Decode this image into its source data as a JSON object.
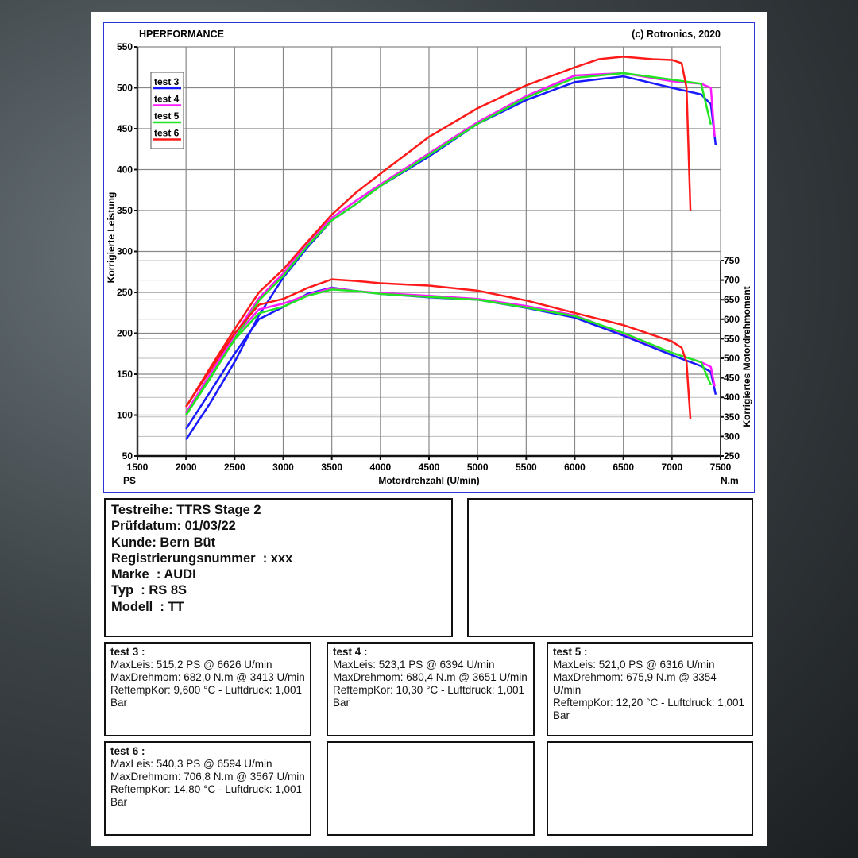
{
  "header": {
    "brand": "HPERFORMANCE",
    "copyright": "(c) Rotronics, 2020"
  },
  "chart_data": {
    "type": "line",
    "xlabel": "Motordrehzahl (U/min)",
    "ylabel_left": "Korrigierte Leistung",
    "ylabel_right": "Korrigiertes Motordrehmoment",
    "unit_left": "PS",
    "unit_right": "N.m",
    "xlim": [
      1500,
      7500
    ],
    "ylim_left": [
      50,
      550
    ],
    "ylim_right": [
      250,
      750
    ],
    "xticks": [
      1500,
      2000,
      2500,
      3000,
      3500,
      4000,
      4500,
      5000,
      5500,
      6000,
      6500,
      7000,
      7500
    ],
    "yticks_left": [
      50,
      100,
      150,
      200,
      250,
      300,
      350,
      400,
      450,
      500,
      550
    ],
    "yticks_right": [
      250,
      300,
      350,
      400,
      450,
      500,
      550,
      600,
      650,
      700,
      750
    ],
    "grid": true,
    "legend_placement": "top-left",
    "series": [
      {
        "name": "test 3",
        "color": "#1a1aff",
        "power": [
          [
            2000,
            70
          ],
          [
            2250,
            115
          ],
          [
            2500,
            165
          ],
          [
            2750,
            222
          ],
          [
            3000,
            268
          ],
          [
            3250,
            305
          ],
          [
            3500,
            338
          ],
          [
            3750,
            358
          ],
          [
            4000,
            380
          ],
          [
            4500,
            416
          ],
          [
            5000,
            456
          ],
          [
            5500,
            485
          ],
          [
            6000,
            507
          ],
          [
            6500,
            514
          ],
          [
            7000,
            500
          ],
          [
            7300,
            492
          ],
          [
            7400,
            480
          ],
          [
            7450,
            430
          ]
        ],
        "torque": [
          [
            2000,
            319
          ],
          [
            2250,
            415
          ],
          [
            2500,
            512
          ],
          [
            2750,
            600
          ],
          [
            3000,
            631
          ],
          [
            3250,
            665
          ],
          [
            3500,
            681
          ],
          [
            3750,
            672
          ],
          [
            4000,
            665
          ],
          [
            4500,
            656
          ],
          [
            5000,
            650
          ],
          [
            5500,
            629
          ],
          [
            6000,
            604
          ],
          [
            6500,
            558
          ],
          [
            7000,
            508
          ],
          [
            7300,
            480
          ],
          [
            7400,
            465
          ],
          [
            7450,
            407
          ]
        ]
      },
      {
        "name": "test 4",
        "color": "#ff1aff",
        "power": [
          [
            2000,
            103
          ],
          [
            2250,
            150
          ],
          [
            2500,
            198
          ],
          [
            2750,
            243
          ],
          [
            3000,
            273
          ],
          [
            3250,
            310
          ],
          [
            3500,
            341
          ],
          [
            3750,
            362
          ],
          [
            4000,
            382
          ],
          [
            4500,
            420
          ],
          [
            5000,
            458
          ],
          [
            5500,
            490
          ],
          [
            6000,
            515
          ],
          [
            6500,
            518
          ],
          [
            7000,
            508
          ],
          [
            7300,
            505
          ],
          [
            7400,
            500
          ],
          [
            7440,
            440
          ]
        ],
        "torque": [
          [
            2000,
            360
          ],
          [
            2250,
            460
          ],
          [
            2500,
            555
          ],
          [
            2750,
            625
          ],
          [
            3000,
            640
          ],
          [
            3250,
            662
          ],
          [
            3500,
            680
          ],
          [
            3750,
            672
          ],
          [
            4000,
            667
          ],
          [
            4500,
            660
          ],
          [
            5000,
            652
          ],
          [
            5500,
            634
          ],
          [
            6000,
            610
          ],
          [
            6500,
            563
          ],
          [
            7000,
            514
          ],
          [
            7300,
            490
          ],
          [
            7400,
            478
          ],
          [
            7440,
            428
          ]
        ]
      },
      {
        "name": "test 5",
        "color": "#22e622",
        "power": [
          [
            2000,
            100
          ],
          [
            2250,
            145
          ],
          [
            2500,
            193
          ],
          [
            2750,
            240
          ],
          [
            3000,
            270
          ],
          [
            3250,
            307
          ],
          [
            3500,
            338
          ],
          [
            3750,
            358
          ],
          [
            4000,
            380
          ],
          [
            4500,
            418
          ],
          [
            5000,
            456
          ],
          [
            5500,
            488
          ],
          [
            6000,
            512
          ],
          [
            6500,
            518
          ],
          [
            7000,
            510
          ],
          [
            7300,
            505
          ],
          [
            7400,
            455
          ]
        ],
        "torque": [
          [
            2000,
            355
          ],
          [
            2250,
            452
          ],
          [
            2500,
            548
          ],
          [
            2750,
            615
          ],
          [
            3000,
            632
          ],
          [
            3250,
            660
          ],
          [
            3500,
            676
          ],
          [
            3750,
            672
          ],
          [
            4000,
            665
          ],
          [
            4500,
            657
          ],
          [
            5000,
            650
          ],
          [
            5500,
            630
          ],
          [
            6000,
            608
          ],
          [
            6500,
            565
          ],
          [
            7000,
            514
          ],
          [
            7300,
            490
          ],
          [
            7400,
            432
          ]
        ]
      },
      {
        "name": "test 6",
        "color": "#ff1a1a",
        "power": [
          [
            2000,
            110
          ],
          [
            2250,
            158
          ],
          [
            2500,
            205
          ],
          [
            2750,
            250
          ],
          [
            3000,
            278
          ],
          [
            3250,
            312
          ],
          [
            3500,
            345
          ],
          [
            3750,
            372
          ],
          [
            4000,
            395
          ],
          [
            4500,
            440
          ],
          [
            5000,
            475
          ],
          [
            5500,
            503
          ],
          [
            6000,
            525
          ],
          [
            6250,
            535
          ],
          [
            6500,
            538
          ],
          [
            6800,
            535
          ],
          [
            7000,
            534
          ],
          [
            7100,
            530
          ],
          [
            7150,
            500
          ],
          [
            7190,
            350
          ]
        ],
        "torque": [
          [
            2000,
            376
          ],
          [
            2250,
            470
          ],
          [
            2500,
            564
          ],
          [
            2750,
            637
          ],
          [
            3000,
            652
          ],
          [
            3250,
            680
          ],
          [
            3500,
            702
          ],
          [
            3750,
            698
          ],
          [
            4000,
            692
          ],
          [
            4500,
            686
          ],
          [
            5000,
            673
          ],
          [
            5500,
            648
          ],
          [
            6000,
            616
          ],
          [
            6500,
            585
          ],
          [
            7000,
            543
          ],
          [
            7100,
            527
          ],
          [
            7150,
            490
          ],
          [
            7190,
            344
          ]
        ]
      }
    ]
  },
  "info": {
    "lines": [
      "Testreihe: TTRS Stage 2",
      "Prüfdatum: 01/03/22",
      "Kunde: Bern Büt",
      "Registrierungsnummer  : xxx",
      "Marke  : AUDI",
      "Typ  : RS 8S",
      "Modell  : TT"
    ]
  },
  "tests": [
    {
      "title": "test 3 :",
      "maxleis": "MaxLeis: 515,2 PS @ 6626 U/min",
      "maxdreh": "MaxDrehmom: 682,0 N.m @ 3413 U/min",
      "reftemp": "ReftempKor: 9,600 °C - Luftdruck: 1,001 Bar"
    },
    {
      "title": "test 4 :",
      "maxleis": "MaxLeis: 523,1 PS @ 6394 U/min",
      "maxdreh": "MaxDrehmom: 680,4 N.m @ 3651 U/min",
      "reftemp": "ReftempKor: 10,30 °C - Luftdruck: 1,001 Bar"
    },
    {
      "title": "test 5 :",
      "maxleis": "MaxLeis: 521,0 PS @ 6316 U/min",
      "maxdreh": "MaxDrehmom: 675,9 N.m @ 3354 U/min",
      "reftemp": "ReftempKor: 12,20 °C - Luftdruck: 1,001 Bar"
    },
    {
      "title": "test 6 :",
      "maxleis": "MaxLeis: 540,3 PS @ 6594 U/min",
      "maxdreh": "MaxDrehmom: 706,8 N.m @ 3567 U/min",
      "reftemp": "ReftempKor: 14,80 °C - Luftdruck: 1,001 Bar"
    }
  ]
}
